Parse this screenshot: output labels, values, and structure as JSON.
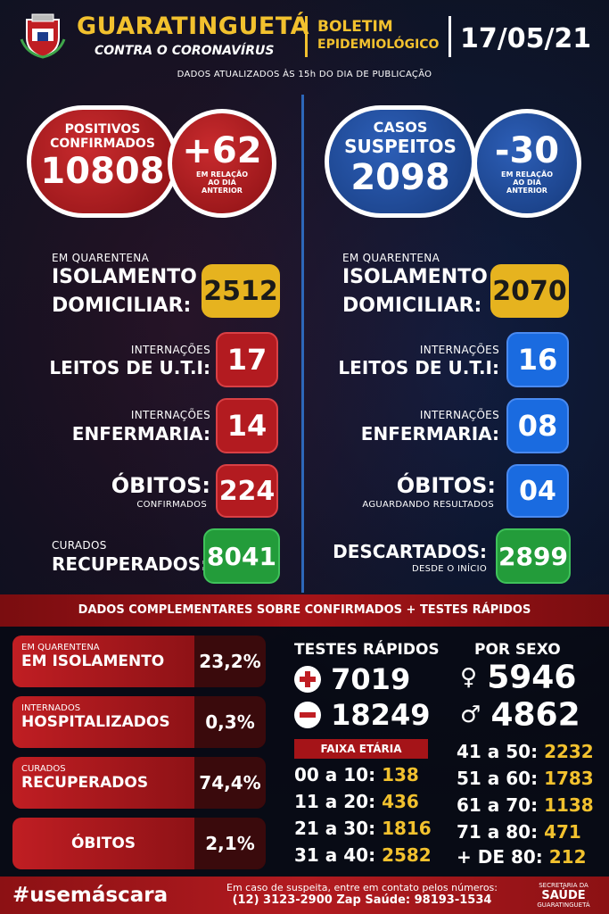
{
  "header": {
    "city": "GUARATINGUETÁ",
    "subtitle": "CONTRA O CORONAVÍRUS",
    "bulletin_line1": "BOLETIM",
    "bulletin_line2": "EPIDEMIOLÓGICO",
    "date": "17/05/21",
    "updated_note": "DADOS ATUALIZADOS ÀS 15h DO DIA DE PUBLICAÇÃO"
  },
  "confirmed": {
    "title_line1": "POSITIVOS",
    "title_line2": "CONFIRMADOS",
    "value": "10808",
    "delta": "+62",
    "delta_note_1": "EM RELAÇÃO",
    "delta_note_2": "AO DIA",
    "delta_note_3": "ANTERIOR",
    "isolation_small": "EM QUARENTENA",
    "isolation_big_1": "ISOLAMENTO",
    "isolation_big_2": "DOMICILIAR:",
    "isolation_value": "2512",
    "icu_small": "INTERNAÇÕES",
    "icu_big": "LEITOS DE U.T.I:",
    "icu_value": "17",
    "ward_small": "INTERNAÇÕES",
    "ward_big": "ENFERMARIA:",
    "ward_value": "14",
    "deaths_big": "ÓBITOS:",
    "deaths_small": "CONFIRMADOS",
    "deaths_value": "224",
    "cured_small": "CURADOS",
    "cured_big": "RECUPERADOS:",
    "cured_value": "8041"
  },
  "suspected": {
    "title_line1": "CASOS",
    "title_line2": "SUSPEITOS",
    "value": "2098",
    "delta": "-30",
    "delta_note_1": "EM RELAÇÃO",
    "delta_note_2": "AO DIA",
    "delta_note_3": "ANTERIOR",
    "isolation_small": "EM QUARENTENA",
    "isolation_big_1": "ISOLAMENTO",
    "isolation_big_2": "DOMICILIAR:",
    "isolation_value": "2070",
    "icu_small": "INTERNAÇÕES",
    "icu_big": "LEITOS DE U.T.I:",
    "icu_value": "16",
    "ward_small": "INTERNAÇÕES",
    "ward_big": "ENFERMARIA:",
    "ward_value": "08",
    "deaths_big": "ÓBITOS:",
    "deaths_small": "AGUARDANDO RESULTADOS",
    "deaths_value": "04",
    "discarded_big": "DESCARTADOS:",
    "discarded_small": "DESDE O INÍCIO",
    "discarded_value": "2899"
  },
  "complementary": {
    "title": "DADOS COMPLEMENTARES SOBRE CONFIRMADOS + TESTES RÁPIDOS",
    "rows": [
      {
        "small": "EM QUARENTENA",
        "big": "EM ISOLAMENTO",
        "value": "23,2%"
      },
      {
        "small": "INTERNADOS",
        "big": "HOSPITALIZADOS",
        "value": "0,3%"
      },
      {
        "small": "CURADOS",
        "big": "RECUPERADOS",
        "value": "74,4%"
      },
      {
        "small": "",
        "big": "ÓBITOS",
        "value": "2,1%"
      }
    ]
  },
  "rapid_tests": {
    "title": "TESTES RÁPIDOS",
    "positive": "7019",
    "negative": "18249"
  },
  "by_sex": {
    "title": "POR SEXO",
    "female": "5946",
    "male": "4862"
  },
  "age_groups": {
    "title": "FAIXA ETÁRIA",
    "left": [
      {
        "range": "00 a 10:",
        "value": "138"
      },
      {
        "range": "11 a 20:",
        "value": "436"
      },
      {
        "range": "21 a 30:",
        "value": "1816"
      },
      {
        "range": "31 a 40:",
        "value": "2582"
      }
    ],
    "right": [
      {
        "range": "41 a 50:",
        "value": "2232"
      },
      {
        "range": "51 a 60:",
        "value": "1783"
      },
      {
        "range": "61 a 70:",
        "value": "1138"
      },
      {
        "range": "71 a 80:",
        "value": "471"
      },
      {
        "range": "+ DE 80:",
        "value": "212"
      }
    ]
  },
  "footer": {
    "hashtag": "#usemáscara",
    "contact_line1": "Em caso de suspeita, entre em contato pelos números:",
    "contact_line2": "(12) 3123-2900 Zap Saúde: 98193-1534",
    "secretaria": "SECRETARIA DA",
    "saude": "SAÚDE",
    "city_small": "GUARATINGUETÁ"
  },
  "colors": {
    "gold": "#f2c12e",
    "red": "#b31b20",
    "blue": "#1a6be0",
    "green": "#239c3a"
  }
}
